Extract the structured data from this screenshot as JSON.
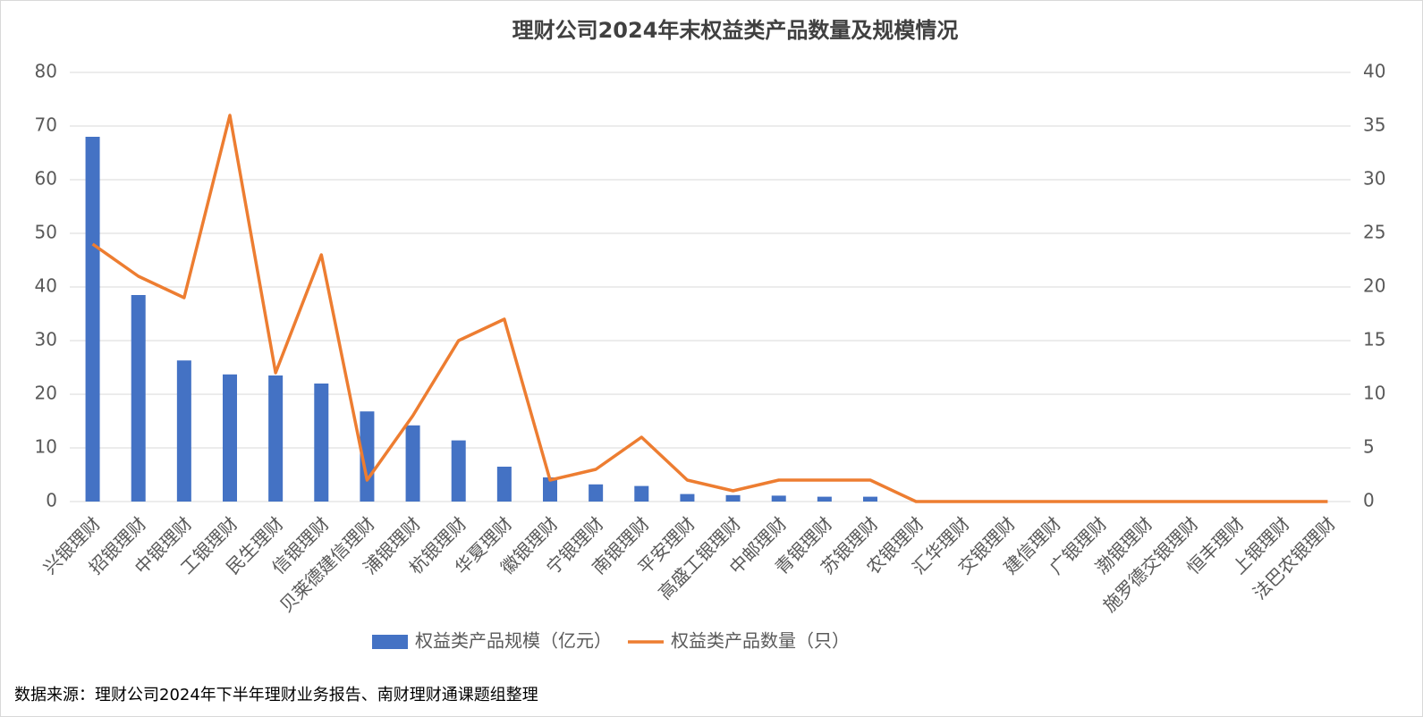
{
  "chart_data": {
    "type": "combo",
    "title": "理财公司2024年末权益类产品数量及规模情况",
    "source": "数据来源：理财公司2024年下半年理财业务报告、南财理财通课题组整理",
    "categories": [
      "兴银理财",
      "招银理财",
      "中银理财",
      "工银理财",
      "民生理财",
      "信银理财",
      "贝莱德建信理财",
      "浦银理财",
      "杭银理财",
      "华夏理财",
      "徽银理财",
      "宁银理财",
      "南银理财",
      "平安理财",
      "高盛工银理财",
      "中邮理财",
      "青银理财",
      "苏银理财",
      "农银理财",
      "汇华理财",
      "交银理财",
      "建信理财",
      "广银理财",
      "渤银理财",
      "施罗德交银理财",
      "恒丰理财",
      "上银理财",
      "法巴农银理财"
    ],
    "series": [
      {
        "name": "权益类产品规模（亿元）",
        "type": "bar",
        "color": "#4472c4",
        "values": [
          68,
          38.5,
          26.3,
          23.7,
          23.5,
          22,
          16.8,
          14.2,
          11.4,
          6.5,
          4.5,
          3.2,
          2.9,
          1.4,
          1.2,
          1.1,
          0.9,
          0.9,
          0,
          0,
          0,
          0,
          0,
          0,
          0,
          0,
          0,
          0
        ]
      },
      {
        "name": "权益类产品数量（只）",
        "type": "line",
        "axis": "y2",
        "color": "#ed7d31",
        "values": [
          24,
          21,
          19,
          36,
          12,
          23,
          2,
          8,
          15,
          17,
          2,
          3,
          6,
          2,
          1,
          2,
          2,
          2,
          0,
          0,
          0,
          0,
          0,
          0,
          0,
          0,
          0,
          0
        ]
      }
    ],
    "ylim": [
      0,
      80
    ],
    "yticks": [
      0,
      10,
      20,
      30,
      40,
      50,
      60,
      70,
      80
    ],
    "y2lim": [
      0,
      40
    ],
    "y2ticks": [
      0,
      5,
      10,
      15,
      20,
      25,
      30,
      35,
      40
    ],
    "grid": true,
    "legend": "bottom"
  }
}
